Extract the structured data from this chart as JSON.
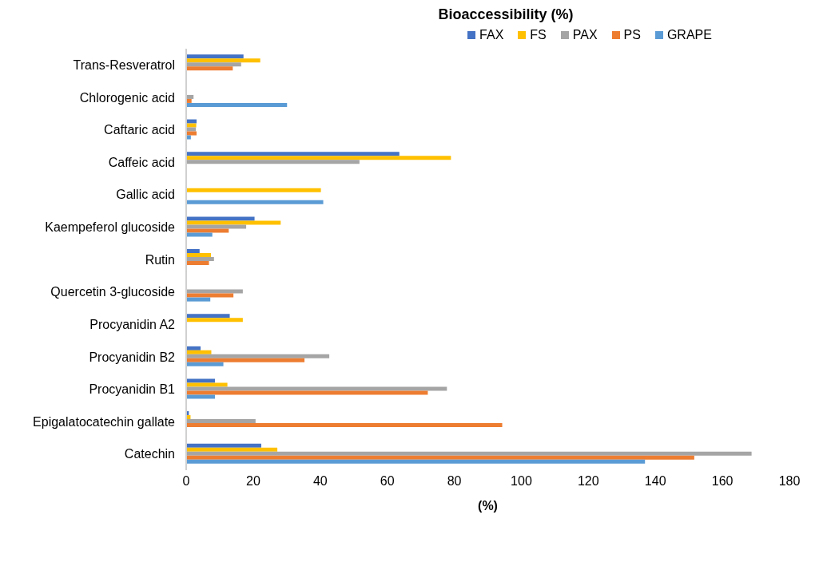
{
  "chart_data": {
    "type": "bar",
    "orientation": "horizontal",
    "title": "Bioaccessibility (%)",
    "xlabel": "(%)",
    "categories": [
      "Trans-Resveratrol",
      "Chlorogenic acid",
      "Caftaric acid",
      "Caffeic acid",
      "Gallic acid",
      "Kaempeferol glucoside",
      "Rutin",
      "Quercetin 3-glucoside",
      "Procyanidin A2",
      "Procyanidin B2",
      "Procyanidin B1",
      "Epigalatocatechin gallate",
      "Catechin"
    ],
    "series": [
      {
        "name": "FAX",
        "color": "#4472c4",
        "values": [
          17.1,
          null,
          3.1,
          63.6,
          null,
          20.4,
          4.0,
          null,
          13.0,
          4.3,
          8.6,
          0.8,
          22.4
        ]
      },
      {
        "name": "FS",
        "color": "#ffc000",
        "values": [
          22.1,
          null,
          3.0,
          79.0,
          40.2,
          28.2,
          7.4,
          null,
          16.9,
          7.5,
          12.3,
          1.3,
          27.2
        ]
      },
      {
        "name": "PAX",
        "color": "#a5a5a5",
        "values": [
          16.4,
          2.2,
          2.9,
          51.7,
          null,
          17.9,
          8.3,
          16.9,
          null,
          42.7,
          77.8,
          20.7,
          168.7
        ]
      },
      {
        "name": "PS",
        "color": "#ed7d31",
        "values": [
          13.9,
          1.6,
          3.1,
          null,
          null,
          12.7,
          6.8,
          14.1,
          null,
          35.3,
          72.1,
          94.3,
          151.6
        ]
      },
      {
        "name": "GRAPE",
        "color": "#5b9bd5",
        "values": [
          null,
          30.1,
          1.4,
          null,
          40.9,
          7.8,
          null,
          7.2,
          null,
          11.1,
          8.6,
          null,
          136.9
        ]
      }
    ],
    "xlim": [
      0,
      180
    ],
    "xticks": [
      0,
      20,
      40,
      60,
      80,
      100,
      120,
      140,
      160,
      180
    ],
    "legend": "top"
  }
}
